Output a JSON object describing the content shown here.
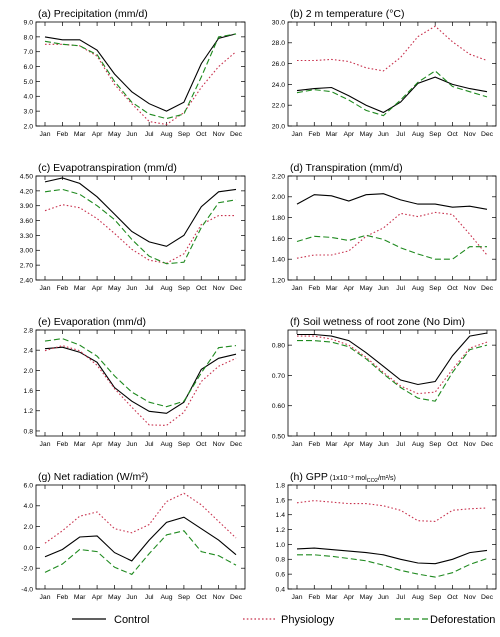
{
  "months": [
    "Jan",
    "Feb",
    "Mar",
    "Apr",
    "May",
    "Jun",
    "Jul",
    "Aug",
    "Sep",
    "Oct",
    "Nov",
    "Dec"
  ],
  "legend": [
    {
      "name": "Control",
      "color": "#000000",
      "dash": "solid"
    },
    {
      "name": "Physiology",
      "color": "#c8324e",
      "dash": "dotted"
    },
    {
      "name": "Deforestation",
      "color": "#1f8a1f",
      "dash": "dashed"
    }
  ],
  "chart_data": [
    {
      "type": "line",
      "title": "(a) Precipitation (mm/d)",
      "ylim": [
        2.0,
        9.0
      ],
      "yticks": [
        "2.0",
        "3.0",
        "4.0",
        "5.0",
        "6.0",
        "7.0",
        "8.0",
        "9.0"
      ],
      "series": [
        {
          "name": "Control",
          "values": [
            8.0,
            7.8,
            7.8,
            7.1,
            5.5,
            4.3,
            3.5,
            3.0,
            3.6,
            6.2,
            7.9,
            8.2
          ]
        },
        {
          "name": "Physiology",
          "values": [
            7.5,
            7.5,
            7.4,
            6.7,
            4.8,
            3.5,
            2.3,
            2.1,
            2.9,
            4.6,
            6.0,
            7.0
          ]
        },
        {
          "name": "Deforestation",
          "values": [
            7.7,
            7.5,
            7.4,
            6.8,
            5.0,
            3.6,
            2.8,
            2.5,
            2.8,
            5.3,
            8.0,
            8.2
          ]
        }
      ]
    },
    {
      "type": "line",
      "title": "(b) 2 m temperature (°C)",
      "ylim": [
        20.0,
        30.0
      ],
      "yticks": [
        "20.0",
        "22.0",
        "24.0",
        "26.0",
        "28.0",
        "30.0"
      ],
      "series": [
        {
          "name": "Control",
          "values": [
            23.4,
            23.6,
            23.7,
            22.9,
            22.0,
            21.3,
            22.3,
            24.1,
            24.7,
            24.0,
            23.6,
            23.3
          ]
        },
        {
          "name": "Physiology",
          "values": [
            26.3,
            26.3,
            26.4,
            26.2,
            25.6,
            25.3,
            26.6,
            28.6,
            29.6,
            28.1,
            26.9,
            26.3
          ]
        },
        {
          "name": "Deforestation",
          "values": [
            23.2,
            23.5,
            23.3,
            22.5,
            21.5,
            21.0,
            22.5,
            24.2,
            25.3,
            23.8,
            23.3,
            22.8
          ]
        }
      ]
    },
    {
      "type": "line",
      "title": "(c) Evapotranspiration (mm/d)",
      "ylim": [
        2.4,
        4.5
      ],
      "yticks": [
        "2.40",
        "2.70",
        "3.00",
        "3.30",
        "3.60",
        "3.90",
        "4.20",
        "4.50"
      ],
      "series": [
        {
          "name": "Control",
          "values": [
            4.38,
            4.46,
            4.35,
            4.08,
            3.73,
            3.38,
            3.17,
            3.08,
            3.3,
            3.88,
            4.18,
            4.23
          ]
        },
        {
          "name": "Physiology",
          "values": [
            3.8,
            3.92,
            3.86,
            3.64,
            3.34,
            3.02,
            2.8,
            2.74,
            2.93,
            3.52,
            3.7,
            3.7
          ]
        },
        {
          "name": "Deforestation",
          "values": [
            4.18,
            4.23,
            4.13,
            3.9,
            3.62,
            3.22,
            2.88,
            2.73,
            2.76,
            3.46,
            3.96,
            4.02
          ]
        }
      ]
    },
    {
      "type": "line",
      "title": "(d) Transpiration (mm/d)",
      "ylim": [
        1.2,
        2.2
      ],
      "yticks": [
        "1.20",
        "1.40",
        "1.60",
        "1.80",
        "2.00",
        "2.20"
      ],
      "series": [
        {
          "name": "Control",
          "values": [
            1.93,
            2.02,
            2.01,
            1.96,
            2.02,
            2.03,
            1.97,
            1.93,
            1.93,
            1.9,
            1.91,
            1.88
          ]
        },
        {
          "name": "Physiology",
          "values": [
            1.41,
            1.44,
            1.44,
            1.48,
            1.62,
            1.7,
            1.84,
            1.81,
            1.85,
            1.83,
            1.64,
            1.44
          ]
        },
        {
          "name": "Deforestation",
          "values": [
            1.57,
            1.62,
            1.61,
            1.58,
            1.63,
            1.59,
            1.51,
            1.45,
            1.4,
            1.4,
            1.52,
            1.52
          ]
        }
      ]
    },
    {
      "type": "line",
      "title": "(e) Evaporation (mm/d)",
      "ylim": [
        0.7,
        2.8
      ],
      "yticks": [
        "0.8",
        "1.2",
        "1.6",
        "2.0",
        "2.4",
        "2.8"
      ],
      "series": [
        {
          "name": "Control",
          "values": [
            2.43,
            2.46,
            2.36,
            2.16,
            1.66,
            1.39,
            1.19,
            1.15,
            1.37,
            2.02,
            2.24,
            2.32
          ]
        },
        {
          "name": "Physiology",
          "values": [
            2.39,
            2.49,
            2.39,
            2.1,
            1.64,
            1.27,
            0.92,
            0.91,
            1.17,
            1.78,
            2.08,
            2.24
          ]
        },
        {
          "name": "Deforestation",
          "values": [
            2.58,
            2.63,
            2.5,
            2.28,
            1.89,
            1.57,
            1.37,
            1.28,
            1.39,
            1.95,
            2.45,
            2.49
          ]
        }
      ]
    },
    {
      "type": "line",
      "title": "(f) Soil wetness of root zone (No Dim)",
      "ylim": [
        0.5,
        0.85
      ],
      "yticks": [
        "0.50",
        "0.60",
        "0.70",
        "0.80"
      ],
      "series": [
        {
          "name": "Control",
          "values": [
            0.835,
            0.835,
            0.83,
            0.815,
            0.775,
            0.73,
            0.685,
            0.67,
            0.68,
            0.765,
            0.83,
            0.84
          ]
        },
        {
          "name": "Physiology",
          "values": [
            0.83,
            0.83,
            0.82,
            0.8,
            0.76,
            0.71,
            0.665,
            0.64,
            0.645,
            0.72,
            0.79,
            0.81
          ]
        },
        {
          "name": "Deforestation",
          "values": [
            0.815,
            0.815,
            0.81,
            0.795,
            0.755,
            0.705,
            0.66,
            0.625,
            0.615,
            0.71,
            0.785,
            0.8
          ]
        }
      ]
    },
    {
      "type": "line",
      "title": "(g) Net radiation (W/m²)",
      "ylim": [
        -4.0,
        6.0
      ],
      "yticks": [
        "-4.0",
        "-2.0",
        "0.0",
        "2.0",
        "4.0",
        "6.0"
      ],
      "series": [
        {
          "name": "Control",
          "values": [
            -0.9,
            -0.2,
            1.0,
            1.1,
            -0.5,
            -1.3,
            0.7,
            2.4,
            2.9,
            1.8,
            0.7,
            -0.7
          ]
        },
        {
          "name": "Physiology",
          "values": [
            0.4,
            1.6,
            3.0,
            3.4,
            1.8,
            1.4,
            2.2,
            4.4,
            5.2,
            4.1,
            2.5,
            0.9
          ]
        },
        {
          "name": "Deforestation",
          "values": [
            -2.4,
            -1.6,
            -0.2,
            -0.4,
            -1.9,
            -2.6,
            -0.6,
            1.2,
            1.6,
            -0.4,
            -0.8,
            -1.7
          ]
        }
      ]
    },
    {
      "type": "line",
      "title": "(h) GPP",
      "title_sub": "(1x10⁻³ mol",
      "title_co2": "CO2",
      "title_tail": "/m²/s)",
      "ylim": [
        0.4,
        1.8
      ],
      "yticks": [
        "0.4",
        "0.6",
        "0.8",
        "1.0",
        "1.2",
        "1.4",
        "1.6",
        "1.8"
      ],
      "series": [
        {
          "name": "Control",
          "values": [
            0.94,
            0.95,
            0.93,
            0.91,
            0.89,
            0.86,
            0.8,
            0.75,
            0.74,
            0.8,
            0.89,
            0.92
          ]
        },
        {
          "name": "Physiology",
          "values": [
            1.56,
            1.59,
            1.57,
            1.55,
            1.55,
            1.52,
            1.46,
            1.32,
            1.31,
            1.46,
            1.48,
            1.49
          ]
        },
        {
          "name": "Deforestation",
          "values": [
            0.86,
            0.86,
            0.84,
            0.81,
            0.78,
            0.72,
            0.65,
            0.6,
            0.56,
            0.62,
            0.73,
            0.81
          ]
        }
      ]
    }
  ]
}
